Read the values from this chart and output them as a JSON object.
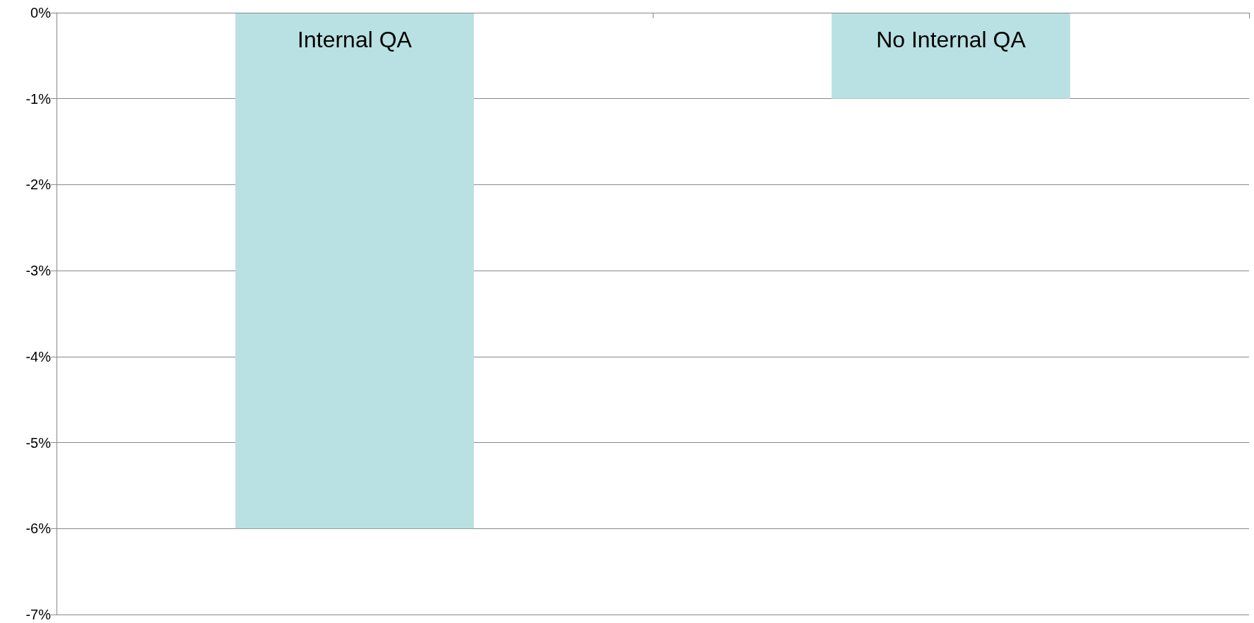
{
  "chart_data": {
    "type": "bar",
    "categories": [
      "Internal QA",
      "No Internal QA"
    ],
    "values": [
      -6,
      -1
    ],
    "color": "#b9e0e2",
    "ylim": [
      -7,
      0
    ],
    "yticks": [
      {
        "value": 0,
        "label": "0%"
      },
      {
        "value": -1,
        "label": "-1%"
      },
      {
        "value": -2,
        "label": "-2%"
      },
      {
        "value": -3,
        "label": "-3%"
      },
      {
        "value": -4,
        "label": "-4%"
      },
      {
        "value": -5,
        "label": "-5%"
      },
      {
        "value": -6,
        "label": "-6%"
      },
      {
        "value": -7,
        "label": "-7%"
      }
    ],
    "grid": "y"
  }
}
